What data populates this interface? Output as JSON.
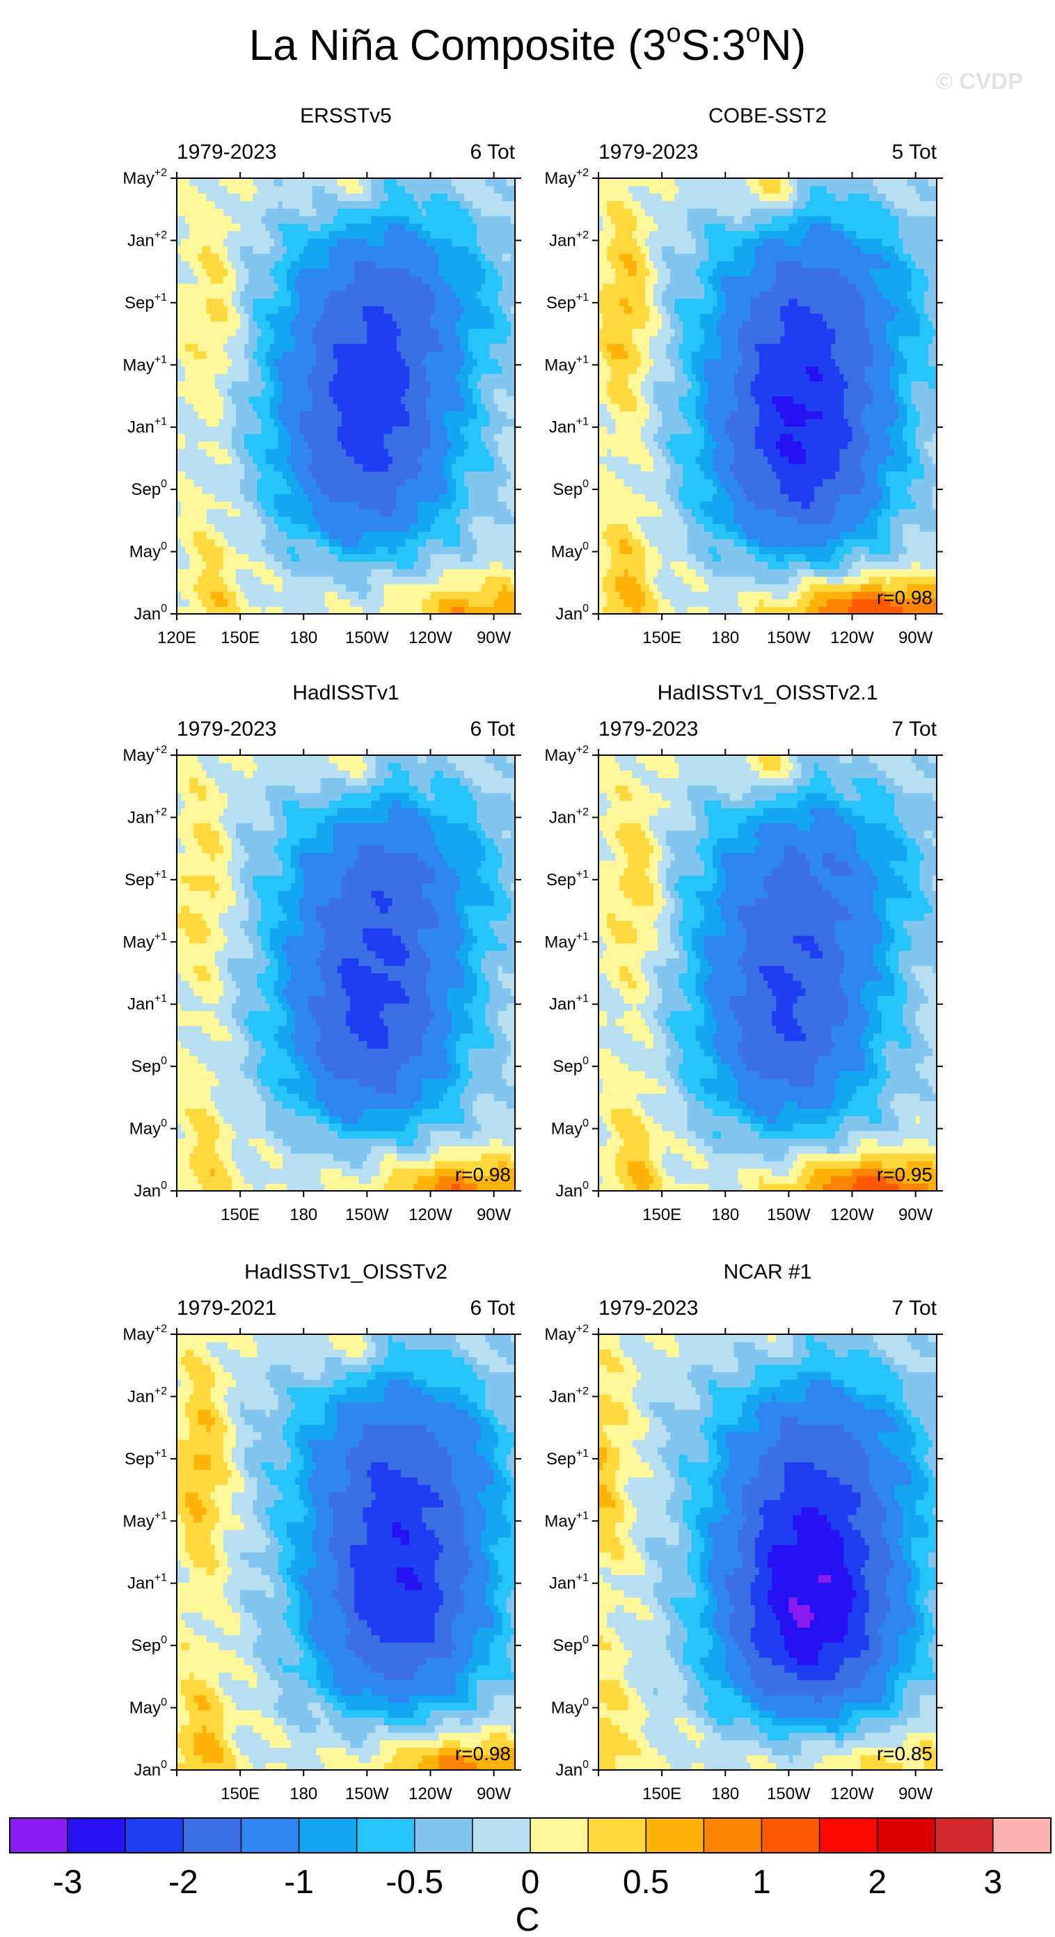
{
  "title": "La Niña Composite (3°S:3°N)",
  "title_main": "La Niña Composite (3",
  "title_sup1": "o",
  "title_mid": "S:3",
  "title_sup2": "o",
  "title_end": "N)",
  "watermark": "© CVDP",
  "colors": [
    "#8b1cf0",
    "#2511f1",
    "#1f3ef2",
    "#3b6fe3",
    "#2f86f1",
    "#15a6f2",
    "#27c4f9",
    "#82c6ef",
    "#b7dff1",
    "#fdf79a",
    "#fed83c",
    "#feb30a",
    "#fe8405",
    "#ff5a00",
    "#fe0800",
    "#dc0000",
    "#d2292b",
    "#ffb2b2"
  ],
  "colorbar": {
    "tick_labels": [
      "-3",
      "-2",
      "-1",
      "-0.5",
      "0",
      "0.5",
      "1",
      "2",
      "3"
    ],
    "label": "C"
  },
  "axes": {
    "y_tick_labels": [
      {
        "base": "Jan",
        "sup": "0"
      },
      {
        "base": "May",
        "sup": "0"
      },
      {
        "base": "Sep",
        "sup": "0"
      },
      {
        "base": "Jan",
        "sup": "+1"
      },
      {
        "base": "May",
        "sup": "+1"
      },
      {
        "base": "Sep",
        "sup": "+1"
      },
      {
        "base": "Jan",
        "sup": "+2"
      },
      {
        "base": "May",
        "sup": "+2"
      }
    ],
    "x_tick_labels": [
      "120E",
      "150E",
      "180",
      "150W",
      "120W",
      "90W"
    ],
    "x_tick_labels_short": [
      "150E",
      "180",
      "150W",
      "120W",
      "90W"
    ]
  },
  "chart_data": [
    {
      "type": "heatmap",
      "title": "ERSSTv5",
      "years": "1979-2023",
      "count": "6 Tot",
      "r": "",
      "xlim": [
        "120E",
        "80W"
      ],
      "ylim": [
        "Jan0",
        "May+2"
      ],
      "features": {
        "min_center": {
          "lon": 210,
          "month": 12.5,
          "value": -2.2
        },
        "warm_west": {
          "lon": 138,
          "month": 8,
          "value": 0.4
        },
        "warm_east_start": {
          "lon": 265,
          "month": 0.5,
          "value": 0.7
        }
      }
    },
    {
      "type": "heatmap",
      "title": "COBE-SST2",
      "years": "1979-2023",
      "count": "5 Tot",
      "r": "r=0.98",
      "xlim": [
        "120E",
        "80W"
      ],
      "ylim": [
        "Jan0",
        "May+2"
      ],
      "features": {
        "min_center": {
          "lon": 215,
          "month": 12,
          "value": -2.5
        },
        "warm_west": {
          "lon": 133,
          "month": 9,
          "value": 0.6
        },
        "warm_east_start": {
          "lon": 250,
          "month": 0.5,
          "value": 1.3
        }
      }
    },
    {
      "type": "heatmap",
      "title": "HadISSTv1",
      "years": "1979-2023",
      "count": "6 Tot",
      "r": "r=0.98",
      "xlim": [
        "120E",
        "80W"
      ],
      "ylim": [
        "Jan0",
        "May+2"
      ],
      "features": {
        "min_center": {
          "lon": 212,
          "month": 12,
          "value": -2.1
        },
        "warm_west": {
          "lon": 133,
          "month": 8,
          "value": 0.4
        },
        "warm_east_start": {
          "lon": 255,
          "month": 0.5,
          "value": 0.9
        }
      }
    },
    {
      "type": "heatmap",
      "title": "HadISSTv1_OISSTv2.1",
      "years": "1979-2023",
      "count": "7 Tot",
      "r": "r=0.95",
      "xlim": [
        "120E",
        "80W"
      ],
      "ylim": [
        "Jan0",
        "May+2"
      ],
      "features": {
        "min_center": {
          "lon": 210,
          "month": 12,
          "value": -2.0
        },
        "warm_west": {
          "lon": 138,
          "month": 11,
          "value": 0.5
        },
        "warm_east_start": {
          "lon": 250,
          "month": 0.5,
          "value": 1.2
        }
      }
    },
    {
      "type": "heatmap",
      "title": "HadISSTv1_OISSTv2",
      "years": "1979-2021",
      "count": "6 Tot",
      "r": "r=0.98",
      "xlim": [
        "120E",
        "80W"
      ],
      "ylim": [
        "Jan0",
        "May+2"
      ],
      "features": {
        "min_center": {
          "lon": 225,
          "month": 12,
          "value": -2.4
        },
        "warm_west": {
          "lon": 132,
          "month": 9,
          "value": 0.6
        },
        "warm_east_start": {
          "lon": 255,
          "month": 0.5,
          "value": 0.9
        }
      }
    },
    {
      "type": "heatmap",
      "title": "NCAR #1",
      "years": "1979-2023",
      "count": "7 Tot",
      "r": "r=0.85",
      "xlim": [
        "120E",
        "80W"
      ],
      "ylim": [
        "Jan0",
        "May+2"
      ],
      "features": {
        "min_center": {
          "lon": 220,
          "month": 11,
          "value": -3.0
        },
        "warm_west": {
          "lon": 122,
          "month": 11,
          "value": 0.5
        },
        "warm_east_start": {
          "lon": 260,
          "month": 0.5,
          "value": 0.4
        }
      }
    }
  ]
}
